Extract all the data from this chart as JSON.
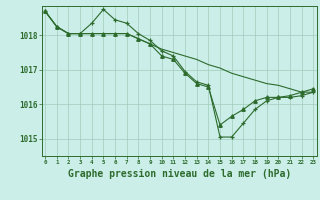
{
  "title": "Graphe pression niveau de la mer (hPa)",
  "bg_color": "#cbeee8",
  "line_color": "#2d6b2d",
  "grid_color": "#a0ccbc",
  "x_ticks": [
    0,
    1,
    2,
    3,
    4,
    5,
    6,
    7,
    8,
    9,
    10,
    11,
    12,
    13,
    14,
    15,
    16,
    17,
    18,
    19,
    20,
    21,
    22,
    23
  ],
  "ylim": [
    1014.5,
    1018.85
  ],
  "yticks": [
    1015,
    1016,
    1017,
    1018
  ],
  "series1_y": [
    1018.7,
    1018.25,
    1018.05,
    1018.05,
    1018.05,
    1018.05,
    1018.05,
    1018.05,
    1017.9,
    1017.75,
    1017.6,
    1017.5,
    1017.4,
    1017.3,
    1017.15,
    1017.05,
    1016.9,
    1016.8,
    1016.7,
    1016.6,
    1016.55,
    1016.45,
    1016.35,
    1016.35
  ],
  "series2_y": [
    1018.7,
    1018.25,
    1018.05,
    1018.05,
    1018.35,
    1018.75,
    1018.45,
    1018.35,
    1018.05,
    1017.85,
    1017.55,
    1017.4,
    1016.95,
    1016.65,
    1016.55,
    1015.05,
    1015.05,
    1015.45,
    1015.85,
    1016.1,
    1016.2,
    1016.2,
    1016.25,
    1016.35
  ],
  "series3_y": [
    1018.7,
    1018.25,
    1018.05,
    1018.05,
    1018.05,
    1018.05,
    1018.05,
    1018.05,
    1017.9,
    1017.75,
    1017.4,
    1017.3,
    1016.9,
    1016.6,
    1016.5,
    1015.4,
    1015.65,
    1015.85,
    1016.1,
    1016.2,
    1016.2,
    1016.25,
    1016.35,
    1016.45
  ],
  "title_color": "#2d6b2d",
  "title_fontsize": 7.0
}
